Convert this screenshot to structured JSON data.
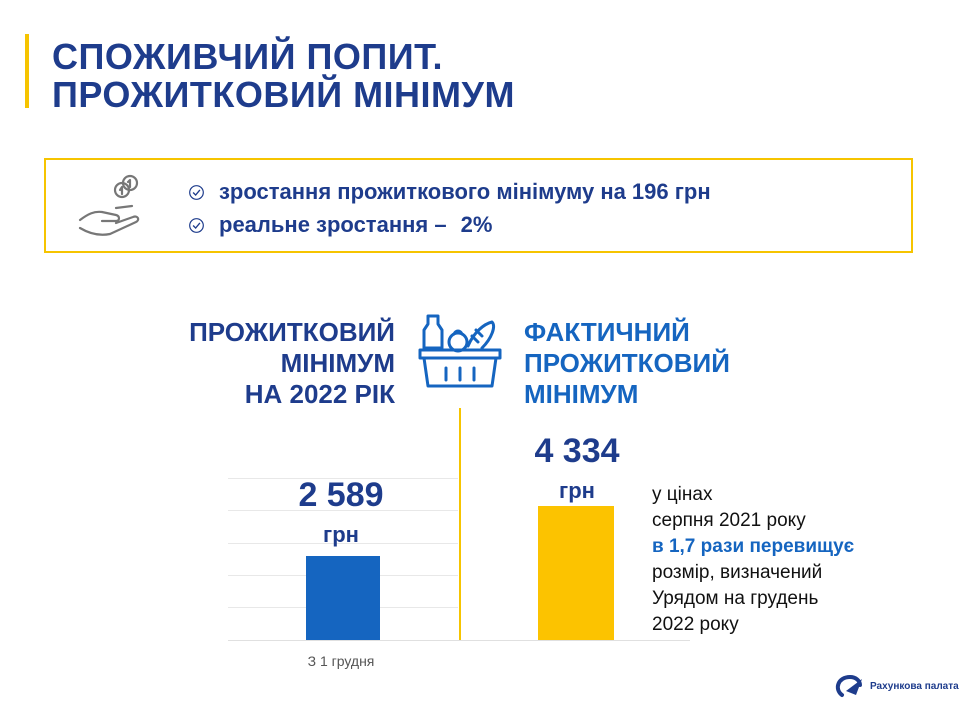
{
  "title": {
    "line1": "СПОЖИВЧИЙ ПОПИТ.",
    "line2": "ПРОЖИТКОВИЙ МІНІМУМ"
  },
  "info": {
    "item1_text": "зростання прожиткового мінімуму на",
    "item1_value": "196 грн",
    "item2_text": "реальне зростання –",
    "item2_value": "2%"
  },
  "left": {
    "heading": [
      "ПРОЖИТКОВИЙ",
      "МІНІМУМ",
      "НА 2022 РІК"
    ],
    "value": "2 589",
    "currency": "грн",
    "xlabel": "З 1 грудня"
  },
  "right": {
    "heading": [
      "ФАКТИЧНИЙ",
      "ПРОЖИТКОВИЙ",
      "МІНІМУМ"
    ],
    "value": "4 334",
    "currency": "грн"
  },
  "note": {
    "line1": "у цінах",
    "line2": "серпня 2021 року",
    "line3_highlight": "в 1,7 рази перевищує",
    "line4": "розмір, визначений",
    "line5": "Урядом на грудень",
    "line6": "2022 року"
  },
  "logo": {
    "text": "Рахункова палата"
  },
  "colors": {
    "navy": "#1e3c8c",
    "blue": "#1565c0",
    "yellow": "#fcc300"
  },
  "chart_data": {
    "type": "bar",
    "categories": [
      "З 1 грудня",
      ""
    ],
    "values": [
      2589,
      4334
    ]
  }
}
